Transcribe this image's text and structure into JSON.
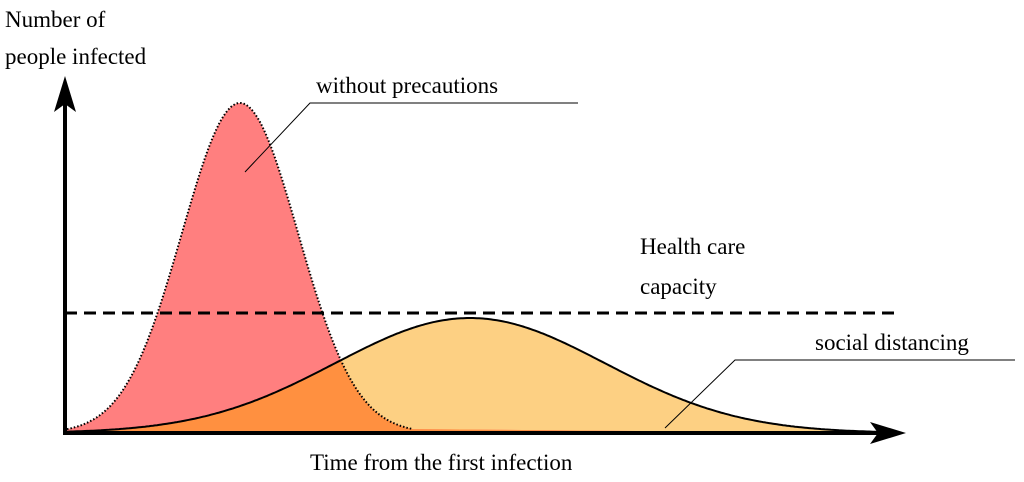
{
  "axes": {
    "y_label": [
      "Number of",
      "people infected"
    ],
    "x_label": "Time from the first infection"
  },
  "labels": {
    "without_precautions": "without precautions",
    "health_care_capacity": [
      "Health care",
      "capacity"
    ],
    "social_distancing": "social distancing"
  }
}
